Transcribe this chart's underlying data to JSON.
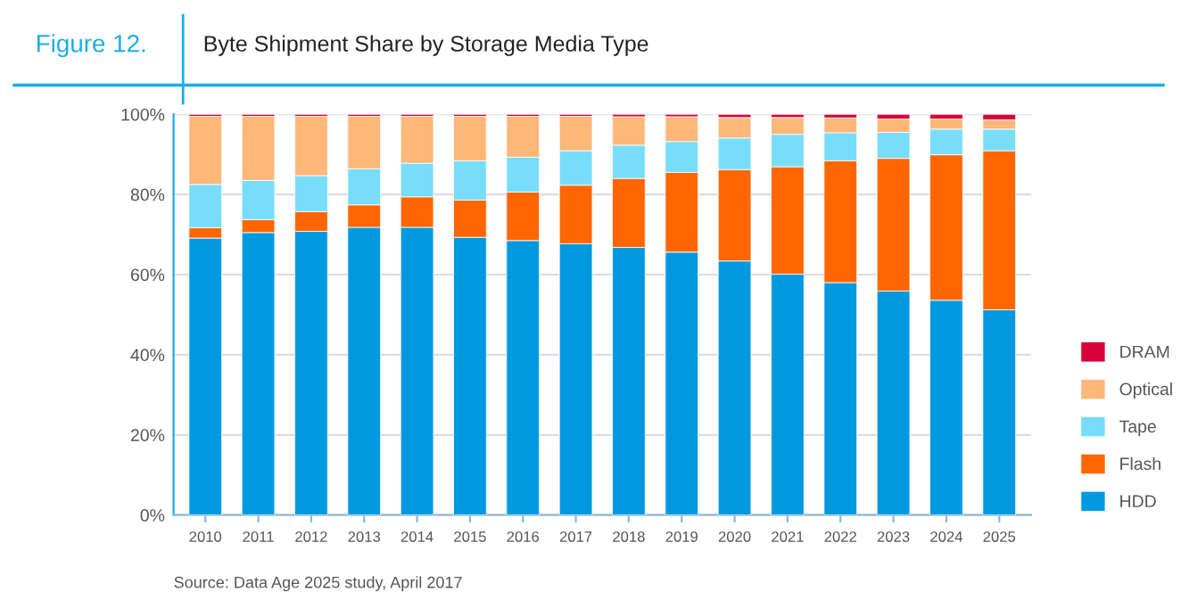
{
  "chart_data": {
    "type": "bar",
    "stacked": true,
    "title": "Byte Shipment Share by Storage Media Type",
    "annotations": [
      "Figure 12.",
      "Source: Data Age 2025 study, April 2017"
    ],
    "categories": [
      "2010",
      "2011",
      "2012",
      "2013",
      "2014",
      "2015",
      "2016",
      "2017",
      "2018",
      "2019",
      "2020",
      "2021",
      "2022",
      "2023",
      "2024",
      "2025"
    ],
    "series": [
      {
        "name": "HDD",
        "color": "#0099e0",
        "values": [
          69.1,
          70.5,
          70.8,
          71.8,
          71.8,
          69.3,
          68.5,
          67.7,
          66.8,
          65.6,
          63.4,
          60.1,
          58.0,
          55.9,
          53.6,
          51.2
        ]
      },
      {
        "name": "Flash",
        "color": "#ff6600",
        "values": [
          2.6,
          3.2,
          4.9,
          5.6,
          7.6,
          9.3,
          12.1,
          14.6,
          17.2,
          19.9,
          22.8,
          26.8,
          30.4,
          33.1,
          36.3,
          39.7
        ]
      },
      {
        "name": "Tape",
        "color": "#77ddfa",
        "values": [
          10.8,
          9.8,
          9.0,
          9.0,
          8.4,
          9.8,
          8.7,
          8.6,
          8.3,
          7.7,
          7.9,
          8.1,
          7.0,
          6.5,
          6.4,
          5.4
        ]
      },
      {
        "name": "Optical",
        "color": "#ffb77a",
        "values": [
          17.0,
          16.0,
          14.8,
          13.1,
          11.7,
          11.1,
          10.2,
          8.6,
          7.1,
          6.2,
          5.1,
          4.2,
          3.7,
          3.3,
          2.5,
          2.3
        ]
      },
      {
        "name": "DRAM",
        "color": "#d7003a",
        "values": [
          0.5,
          0.5,
          0.5,
          0.5,
          0.5,
          0.5,
          0.5,
          0.5,
          0.6,
          0.6,
          0.8,
          0.8,
          0.9,
          1.2,
          1.2,
          1.4
        ]
      }
    ],
    "ylim": [
      0,
      100
    ],
    "yticks": [
      {
        "value": 0,
        "label": "0%"
      },
      {
        "value": 20,
        "label": "20%"
      },
      {
        "value": 40,
        "label": "40%"
      },
      {
        "value": 60,
        "label": "60%"
      },
      {
        "value": 80,
        "label": "80%"
      },
      {
        "value": 100,
        "label": "100%"
      }
    ],
    "grid": "y",
    "legend": "right"
  }
}
